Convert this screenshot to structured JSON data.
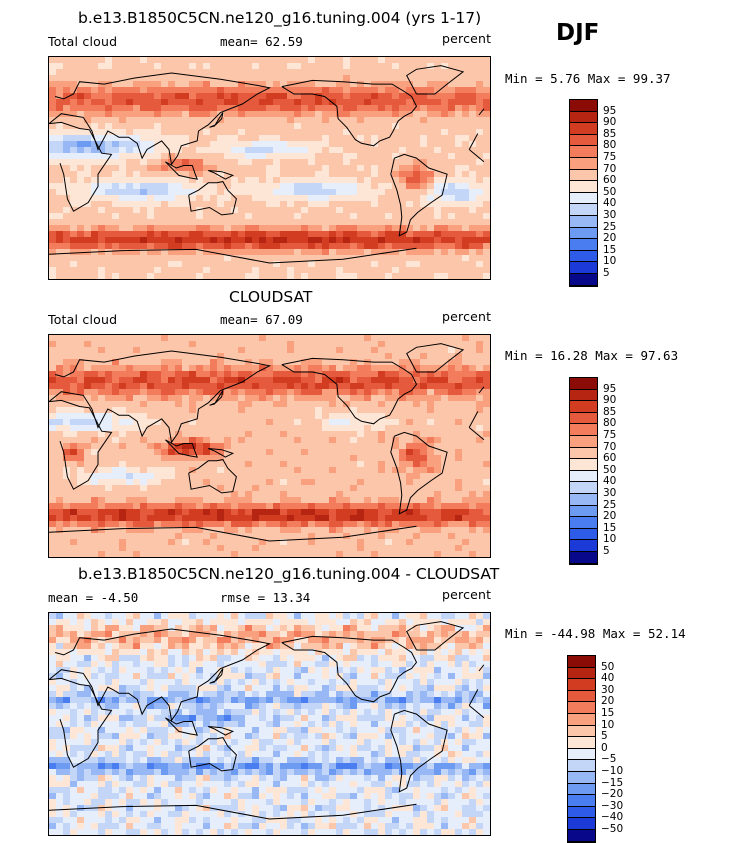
{
  "season": "DJF",
  "palettes": {
    "abs": [
      "#08088a",
      "#1c3ad8",
      "#2f5be9",
      "#4a7df0",
      "#6e9bf2",
      "#97b8f5",
      "#c3d6f8",
      "#e6eefc",
      "#fde6d6",
      "#fcc6aa",
      "#f9a07f",
      "#f27c5b",
      "#e55a3c",
      "#d23d22",
      "#b52511",
      "#8b0c06"
    ],
    "diff": [
      "#08088a",
      "#1c3ad8",
      "#2f5be9",
      "#4a7df0",
      "#6e9bf2",
      "#97b8f5",
      "#c3d6f8",
      "#e6eefc",
      "#fde6d6",
      "#fcc6aa",
      "#f9a07f",
      "#f27c5b",
      "#e55a3c",
      "#d23d22",
      "#b52511",
      "#8b0c06"
    ]
  },
  "panels": [
    {
      "title": "b.e13.B1850C5CN.ne120_g16.tuning.004 (yrs 1-17)",
      "left_label": "Total cloud",
      "mid_label": "mean=   62.59",
      "right_label": "percent",
      "minmax": "Min =    5.76 Max =   99.37",
      "levels": [
        "95",
        "90",
        "85",
        "80",
        "75",
        "70",
        "60",
        "50",
        "40",
        "30",
        "25",
        "20",
        "15",
        "10",
        "5"
      ],
      "palette": "abs",
      "pattern": "model"
    },
    {
      "title": "CLOUDSAT",
      "left_label": "Total cloud",
      "mid_label": "mean=   67.09",
      "right_label": "percent",
      "minmax": "Min =   16.28 Max =   97.63",
      "levels": [
        "95",
        "90",
        "85",
        "80",
        "75",
        "70",
        "60",
        "50",
        "40",
        "30",
        "25",
        "20",
        "15",
        "10",
        "5"
      ],
      "palette": "abs",
      "pattern": "obs"
    },
    {
      "title": "b.e13.B1850C5CN.ne120_g16.tuning.004 - CLOUDSAT",
      "left_label": "mean =   -4.50",
      "mid_label": "rmse =   13.34",
      "right_label": "percent",
      "minmax": "Min = -44.98 Max =   52.14",
      "levels": [
        "50",
        "40",
        "30",
        "20",
        "15",
        "10",
        "5",
        "0",
        "−5",
        "−10",
        "−15",
        "−20",
        "−30",
        "−40",
        "−50"
      ],
      "palette": "diff",
      "pattern": "diff"
    }
  ],
  "chart_data": [
    {
      "type": "heatmap",
      "title": "b.e13.B1850C5CN.ne120_g16.tuning.004 (yrs 1-17)",
      "variable": "Total cloud",
      "units": "percent",
      "season": "DJF",
      "mean": 62.59,
      "min": 5.76,
      "max": 99.37,
      "contour_levels": [
        5,
        10,
        15,
        20,
        25,
        30,
        40,
        50,
        60,
        70,
        75,
        80,
        85,
        90,
        95
      ]
    },
    {
      "type": "heatmap",
      "title": "CLOUDSAT",
      "variable": "Total cloud",
      "units": "percent",
      "season": "DJF",
      "mean": 67.09,
      "min": 16.28,
      "max": 97.63,
      "contour_levels": [
        5,
        10,
        15,
        20,
        25,
        30,
        40,
        50,
        60,
        70,
        75,
        80,
        85,
        90,
        95
      ]
    },
    {
      "type": "heatmap",
      "title": "b.e13.B1850C5CN.ne120_g16.tuning.004 - CLOUDSAT",
      "units": "percent",
      "season": "DJF",
      "mean": -4.5,
      "rmse": 13.34,
      "min": -44.98,
      "max": 52.14,
      "contour_levels": [
        -50,
        -40,
        -30,
        -20,
        -15,
        -10,
        -5,
        0,
        5,
        10,
        15,
        20,
        30,
        40,
        50
      ]
    }
  ]
}
